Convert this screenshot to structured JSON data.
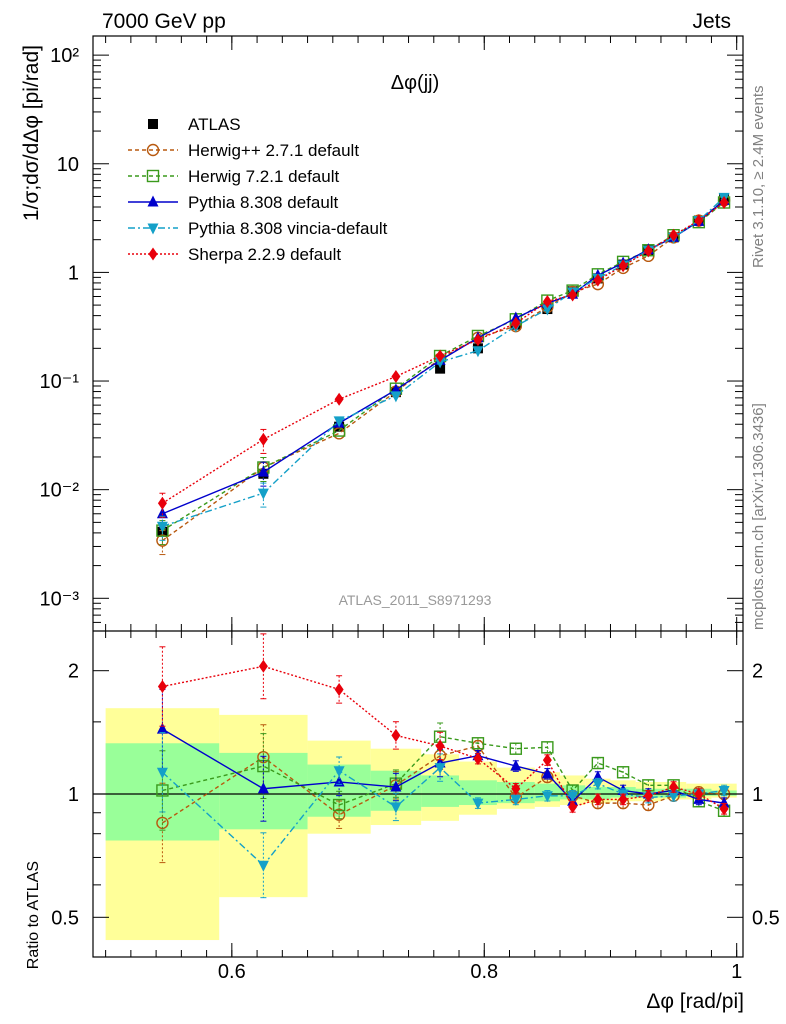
{
  "header": {
    "left": "7000 GeV pp",
    "right": "Jets",
    "plot_title": "Δφ(jj)",
    "watermark": "ATLAS_2011_S8971293",
    "side_top": "Rivet 3.1.10, ≥ 2.4M events",
    "side_bottom": "mcplots.cern.ch [arXiv:1306.3436]"
  },
  "axes": {
    "main_ylabel": "1/σ;dσ/dΔφ [pi/rad]",
    "ratio_ylabel": "Ratio to ATLAS",
    "xlabel": "Δφ [rad/pi]",
    "x_ticks": [
      "0.6",
      "0.8",
      "1"
    ],
    "main_yticks": [
      "10⁻³",
      "10⁻²",
      "10⁻¹",
      "1",
      "10",
      "10²"
    ],
    "ratio_yticks": [
      "0.5",
      "1",
      "2"
    ]
  },
  "chart_data": [
    {
      "type": "line",
      "title": "Δφ(jj)",
      "xlabel": "Δφ [rad/pi]",
      "ylabel": "1/σ;dσ/dΔφ [pi/rad]",
      "yscale": "log",
      "xlim": [
        0.49,
        1.005
      ],
      "ylim": [
        0.0005,
        150
      ],
      "legend_position": "top-left",
      "x": [
        0.545,
        0.625,
        0.685,
        0.73,
        0.765,
        0.795,
        0.825,
        0.85,
        0.87,
        0.89,
        0.91,
        0.93,
        0.95,
        0.97,
        0.99
      ],
      "series": [
        {
          "name": "ATLAS",
          "color": "#000000",
          "marker": "square",
          "values": [
            0.0041,
            0.014,
            0.038,
            0.079,
            0.13,
            0.2,
            0.33,
            0.46,
            0.67,
            0.88,
            1.18,
            1.6,
            2.1,
            3.0,
            4.8
          ]
        },
        {
          "name": "Herwig++ 2.7.1 default",
          "color": "#b8590f",
          "marker": "circle-open",
          "dash": "4,3",
          "values": [
            0.0034,
            0.016,
            0.033,
            0.08,
            0.16,
            0.25,
            0.32,
            0.48,
            0.66,
            0.78,
            1.1,
            1.42,
            2.1,
            3.0,
            4.6
          ]
        },
        {
          "name": "Herwig 7.2.1 default",
          "color": "#3a9a1c",
          "marker": "square-open",
          "dash": "4,3",
          "values": [
            0.0042,
            0.016,
            0.035,
            0.085,
            0.17,
            0.26,
            0.37,
            0.55,
            0.68,
            0.96,
            1.25,
            1.6,
            2.2,
            2.9,
            4.4
          ]
        },
        {
          "name": "Pythia 8.308 default",
          "color": "#0000cc",
          "marker": "triangle-up",
          "values": [
            0.006,
            0.0145,
            0.041,
            0.083,
            0.155,
            0.25,
            0.38,
            0.52,
            0.63,
            0.94,
            1.22,
            1.62,
            2.1,
            2.95,
            4.6
          ]
        },
        {
          "name": "Pythia 8.308 vincia-default",
          "color": "#14a0c8",
          "marker": "triangle-down",
          "dash": "7,3,2,3",
          "values": [
            0.0046,
            0.0093,
            0.043,
            0.073,
            0.15,
            0.19,
            0.32,
            0.46,
            0.66,
            0.88,
            1.17,
            1.6,
            2.1,
            3.0,
            4.9
          ]
        },
        {
          "name": "Sherpa 2.2.9 default",
          "color": "#e8000b",
          "marker": "diamond",
          "dash": "2,2",
          "values": [
            0.0075,
            0.029,
            0.068,
            0.11,
            0.17,
            0.24,
            0.34,
            0.54,
            0.62,
            0.85,
            1.15,
            1.58,
            2.2,
            3.0,
            4.4
          ]
        }
      ]
    },
    {
      "type": "line",
      "ylabel": "Ratio to ATLAS",
      "xlabel": "Δφ [rad/pi]",
      "yscale": "log",
      "xlim": [
        0.49,
        1.005
      ],
      "ylim": [
        0.4,
        2.5
      ],
      "reference_line": 1,
      "x": [
        0.545,
        0.625,
        0.685,
        0.73,
        0.765,
        0.795,
        0.825,
        0.85,
        0.87,
        0.89,
        0.91,
        0.93,
        0.95,
        0.97,
        0.99
      ],
      "uncertainty_bands": {
        "bin_edges": [
          0.5,
          0.59,
          0.66,
          0.71,
          0.75,
          0.78,
          0.81,
          0.84,
          0.86,
          0.88,
          0.9,
          0.92,
          0.94,
          0.96,
          0.98,
          1.0
        ],
        "outer": [
          [
            0.44,
            1.62
          ],
          [
            0.56,
            1.56
          ],
          [
            0.8,
            1.35
          ],
          [
            0.84,
            1.29
          ],
          [
            0.86,
            1.25
          ],
          [
            0.89,
            1.2
          ],
          [
            0.92,
            1.16
          ],
          [
            0.93,
            1.13
          ],
          [
            0.94,
            1.11
          ],
          [
            0.95,
            1.09
          ],
          [
            0.96,
            1.08
          ],
          [
            0.96,
            1.07
          ],
          [
            0.97,
            1.07
          ],
          [
            0.97,
            1.06
          ],
          [
            0.98,
            1.06
          ]
        ],
        "inner": [
          [
            0.77,
            1.33
          ],
          [
            0.82,
            1.26
          ],
          [
            0.88,
            1.18
          ],
          [
            0.91,
            1.14
          ],
          [
            0.93,
            1.11
          ],
          [
            0.94,
            1.08
          ],
          [
            0.95,
            1.07
          ],
          [
            0.96,
            1.06
          ],
          [
            0.97,
            1.05
          ],
          [
            0.97,
            1.04
          ],
          [
            0.98,
            1.04
          ],
          [
            0.98,
            1.03
          ],
          [
            0.98,
            1.03
          ],
          [
            0.99,
            1.03
          ],
          [
            0.99,
            1.02
          ]
        ]
      },
      "series": [
        {
          "name": "Herwig++ 2.7.1 default",
          "color": "#b8590f",
          "marker": "circle-open",
          "dash": "4,3",
          "values": [
            0.85,
            1.23,
            0.89,
            1.05,
            1.24,
            1.31,
            0.98,
            1.1,
            0.99,
            0.95,
            0.95,
            0.94,
            0.99,
            1.01,
            1.0
          ]
        },
        {
          "name": "Herwig 7.2.1 default",
          "color": "#3a9a1c",
          "marker": "square-open",
          "dash": "4,3",
          "values": [
            1.02,
            1.17,
            0.94,
            1.06,
            1.38,
            1.33,
            1.29,
            1.3,
            1.02,
            1.19,
            1.13,
            1.05,
            1.05,
            0.96,
            0.91
          ]
        },
        {
          "name": "Pythia 8.308 default",
          "color": "#0000cc",
          "marker": "triangle-up",
          "values": [
            1.44,
            1.03,
            1.07,
            1.04,
            1.19,
            1.24,
            1.17,
            1.12,
            0.96,
            1.1,
            1.02,
            1.0,
            1.02,
            0.97,
            0.95
          ]
        },
        {
          "name": "Pythia 8.308 vincia-default",
          "color": "#14a0c8",
          "marker": "triangle-down",
          "dash": "7,3,2,3",
          "values": [
            1.13,
            0.67,
            1.14,
            0.93,
            1.16,
            0.95,
            0.97,
            0.99,
            0.99,
            1.06,
            1.0,
            0.98,
            0.99,
            1.0,
            1.02
          ]
        },
        {
          "name": "Sherpa 2.2.9 default",
          "color": "#e8000b",
          "marker": "diamond",
          "dash": "2,2",
          "values": [
            1.83,
            2.05,
            1.8,
            1.39,
            1.31,
            1.22,
            1.03,
            1.21,
            0.93,
            0.97,
            0.97,
            0.99,
            1.04,
            1.0,
            0.92
          ]
        }
      ]
    }
  ]
}
